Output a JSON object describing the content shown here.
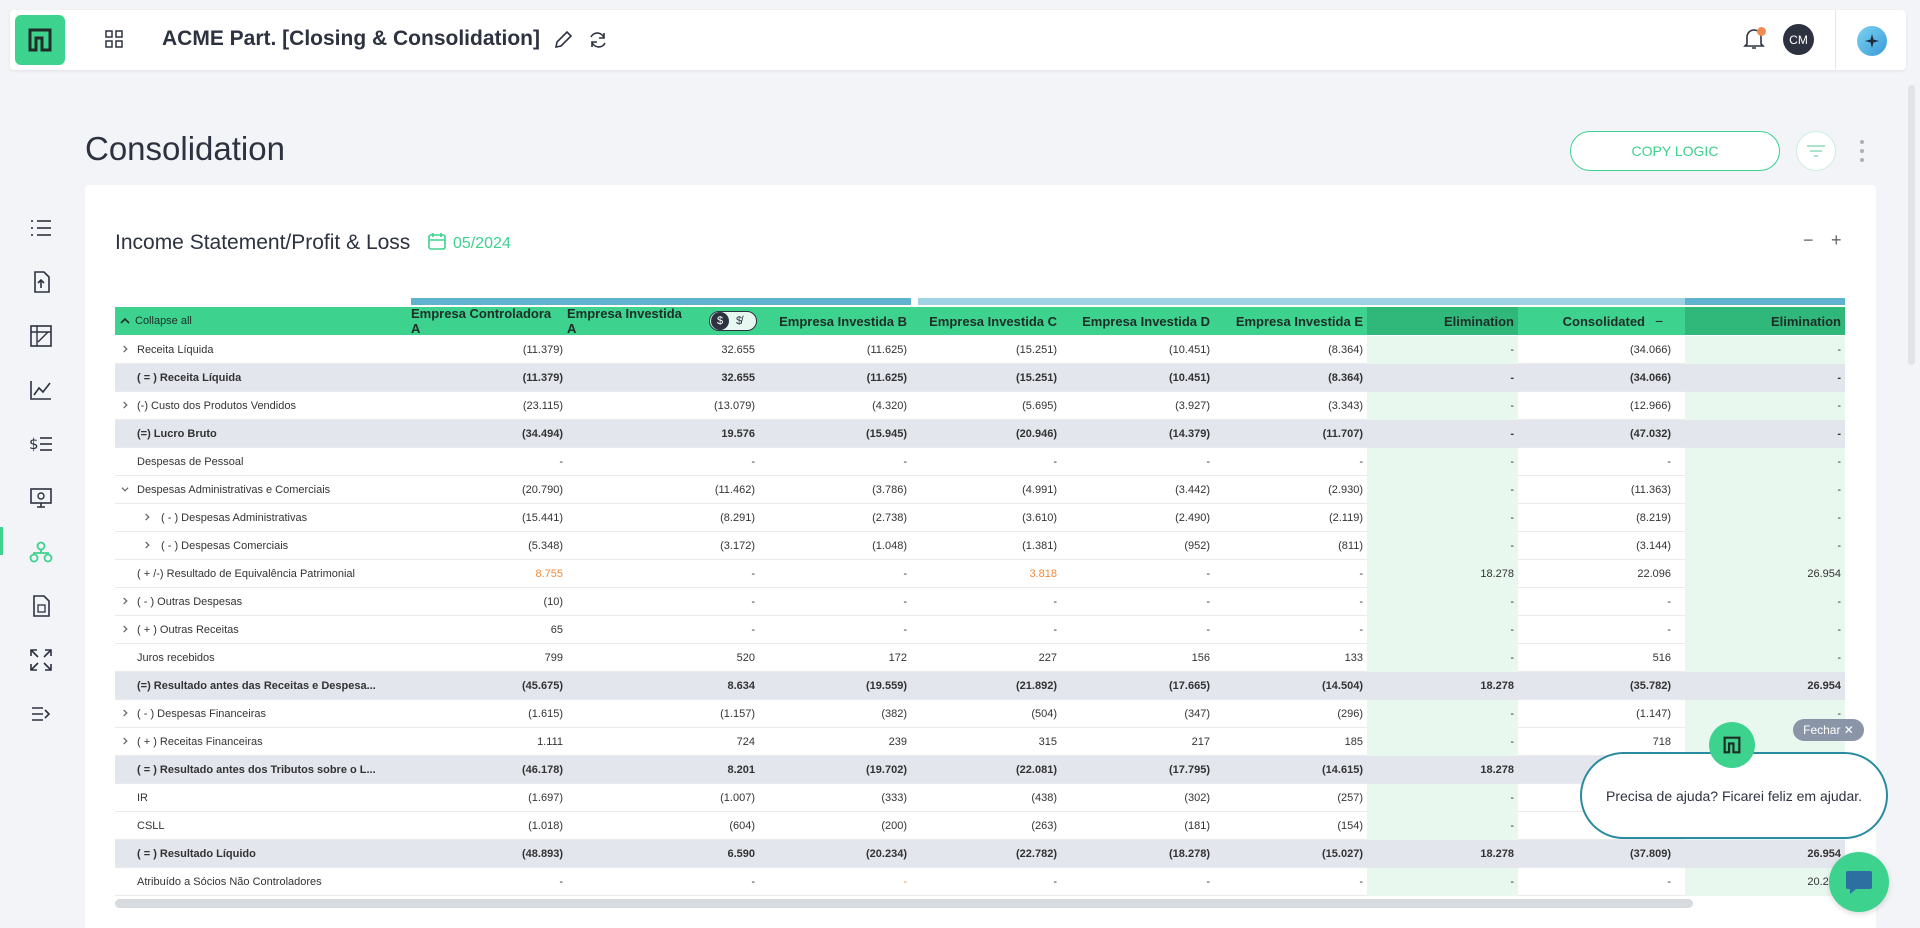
{
  "app": {
    "title": "ACME Part. [Closing & Consolidation]",
    "avatar_initials": "CM"
  },
  "page": {
    "title": "Consolidation",
    "copy_logic_label": "COPY LOGIC"
  },
  "card": {
    "title": "Income Statement/Profit & Loss",
    "period": "05/2024",
    "collapse_label": "−",
    "expand_label": "+"
  },
  "table": {
    "collapse_all": "Collapse all",
    "columns": [
      "Empresa Controladora A",
      "Empresa Investida A",
      "Empresa Investida B",
      "Empresa Investida C",
      "Empresa Investida D",
      "Empresa Investida E",
      "Elimination",
      "Consolidated",
      "Elimination"
    ],
    "rows": [
      {
        "label": "Receita Líquida",
        "expand": "right",
        "bold": false,
        "values": [
          "(11.379)",
          "32.655",
          "(11.625)",
          "(15.251)",
          "(10.451)",
          "(8.364)",
          "-",
          "(34.066)",
          "-"
        ]
      },
      {
        "label": "( = ) Receita Líquida",
        "expand": "",
        "bold": true,
        "values": [
          "(11.379)",
          "32.655",
          "(11.625)",
          "(15.251)",
          "(10.451)",
          "(8.364)",
          "-",
          "(34.066)",
          "-"
        ]
      },
      {
        "label": "(-) Custo dos Produtos Vendidos",
        "expand": "right",
        "bold": false,
        "values": [
          "(23.115)",
          "(13.079)",
          "(4.320)",
          "(5.695)",
          "(3.927)",
          "(3.343)",
          "-",
          "(12.966)",
          "-"
        ]
      },
      {
        "label": "(=) Lucro Bruto",
        "expand": "",
        "bold": true,
        "values": [
          "(34.494)",
          "19.576",
          "(15.945)",
          "(20.946)",
          "(14.379)",
          "(11.707)",
          "-",
          "(47.032)",
          "-"
        ]
      },
      {
        "label": "Despesas de Pessoal",
        "expand": "",
        "bold": false,
        "values": [
          "-",
          "-",
          "-",
          "-",
          "-",
          "-",
          "-",
          "-",
          "-"
        ]
      },
      {
        "label": "Despesas Administrativas e Comerciais",
        "expand": "down",
        "bold": false,
        "values": [
          "(20.790)",
          "(11.462)",
          "(3.786)",
          "(4.991)",
          "(3.442)",
          "(2.930)",
          "-",
          "(11.363)",
          "-"
        ]
      },
      {
        "label": "( - ) Despesas Administrativas",
        "expand": "right-indent",
        "bold": false,
        "values": [
          "(15.441)",
          "(8.291)",
          "(2.738)",
          "(3.610)",
          "(2.490)",
          "(2.119)",
          "-",
          "(8.219)",
          "-"
        ]
      },
      {
        "label": "( - ) Despesas Comerciais",
        "expand": "right-indent",
        "bold": false,
        "values": [
          "(5.348)",
          "(3.172)",
          "(1.048)",
          "(1.381)",
          "(952)",
          "(811)",
          "-",
          "(3.144)",
          "-"
        ]
      },
      {
        "label": "( + /-) Resultado de Equivalência Patrimonial",
        "expand": "",
        "bold": false,
        "values": [
          "8.755",
          "-",
          "-",
          "3.818",
          "-",
          "-",
          "18.278",
          "22.096",
          "26.954"
        ],
        "orange": [
          0,
          3
        ]
      },
      {
        "label": "( - ) Outras Despesas",
        "expand": "right",
        "bold": false,
        "values": [
          "(10)",
          "-",
          "-",
          "-",
          "-",
          "-",
          "-",
          "-",
          "-"
        ]
      },
      {
        "label": "( + ) Outras Receitas",
        "expand": "right",
        "bold": false,
        "values": [
          "65",
          "-",
          "-",
          "-",
          "-",
          "-",
          "-",
          "-",
          "-"
        ]
      },
      {
        "label": "Juros recebidos",
        "expand": "",
        "bold": false,
        "values": [
          "799",
          "520",
          "172",
          "227",
          "156",
          "133",
          "-",
          "516",
          "-"
        ]
      },
      {
        "label": "(=) Resultado antes das Receitas e Despesa...",
        "expand": "",
        "bold": true,
        "values": [
          "(45.675)",
          "8.634",
          "(19.559)",
          "(21.892)",
          "(17.665)",
          "(14.504)",
          "18.278",
          "(35.782)",
          "26.954"
        ]
      },
      {
        "label": "( - ) Despesas Financeiras",
        "expand": "right",
        "bold": false,
        "values": [
          "(1.615)",
          "(1.157)",
          "(382)",
          "(504)",
          "(347)",
          "(296)",
          "-",
          "(1.147)",
          "-"
        ]
      },
      {
        "label": "( + ) Receitas Financeiras",
        "expand": "right",
        "bold": false,
        "values": [
          "1.111",
          "724",
          "239",
          "315",
          "217",
          "185",
          "-",
          "718",
          ""
        ]
      },
      {
        "label": "( = ) Resultado antes dos Tributos sobre o L...",
        "expand": "",
        "bold": true,
        "values": [
          "(46.178)",
          "8.201",
          "(19.702)",
          "(22.081)",
          "(17.795)",
          "(14.615)",
          "18.278",
          "",
          ""
        ]
      },
      {
        "label": "IR",
        "expand": "",
        "bold": false,
        "values": [
          "(1.697)",
          "(1.007)",
          "(333)",
          "(438)",
          "(302)",
          "(257)",
          "-",
          "",
          ""
        ]
      },
      {
        "label": "CSLL",
        "expand": "",
        "bold": false,
        "values": [
          "(1.018)",
          "(604)",
          "(200)",
          "(263)",
          "(181)",
          "(154)",
          "-",
          "",
          ""
        ]
      },
      {
        "label": "( = ) Resultado Líquido",
        "expand": "",
        "bold": true,
        "values": [
          "(48.893)",
          "6.590",
          "(20.234)",
          "(22.782)",
          "(18.278)",
          "(15.027)",
          "18.278",
          "(37.809)",
          "26.954"
        ]
      },
      {
        "label": "Atribuído a Sócios Não Controladores",
        "expand": "",
        "bold": false,
        "values": [
          "-",
          "-",
          "-",
          "-",
          "-",
          "-",
          "-",
          "-",
          "20.234"
        ],
        "orange": [
          2
        ]
      }
    ]
  },
  "help": {
    "message": "Precisa de ajuda? Ficarei feliz em ajudar.",
    "close_label": "Fechar ✕"
  },
  "colors": {
    "accent": "#3dd28e",
    "group_bar_1": "#5fb3d0",
    "group_bar_2": "#9fd3e3",
    "elimination_fill": "#e9f8ef",
    "orange_value": "#f08a3a"
  }
}
